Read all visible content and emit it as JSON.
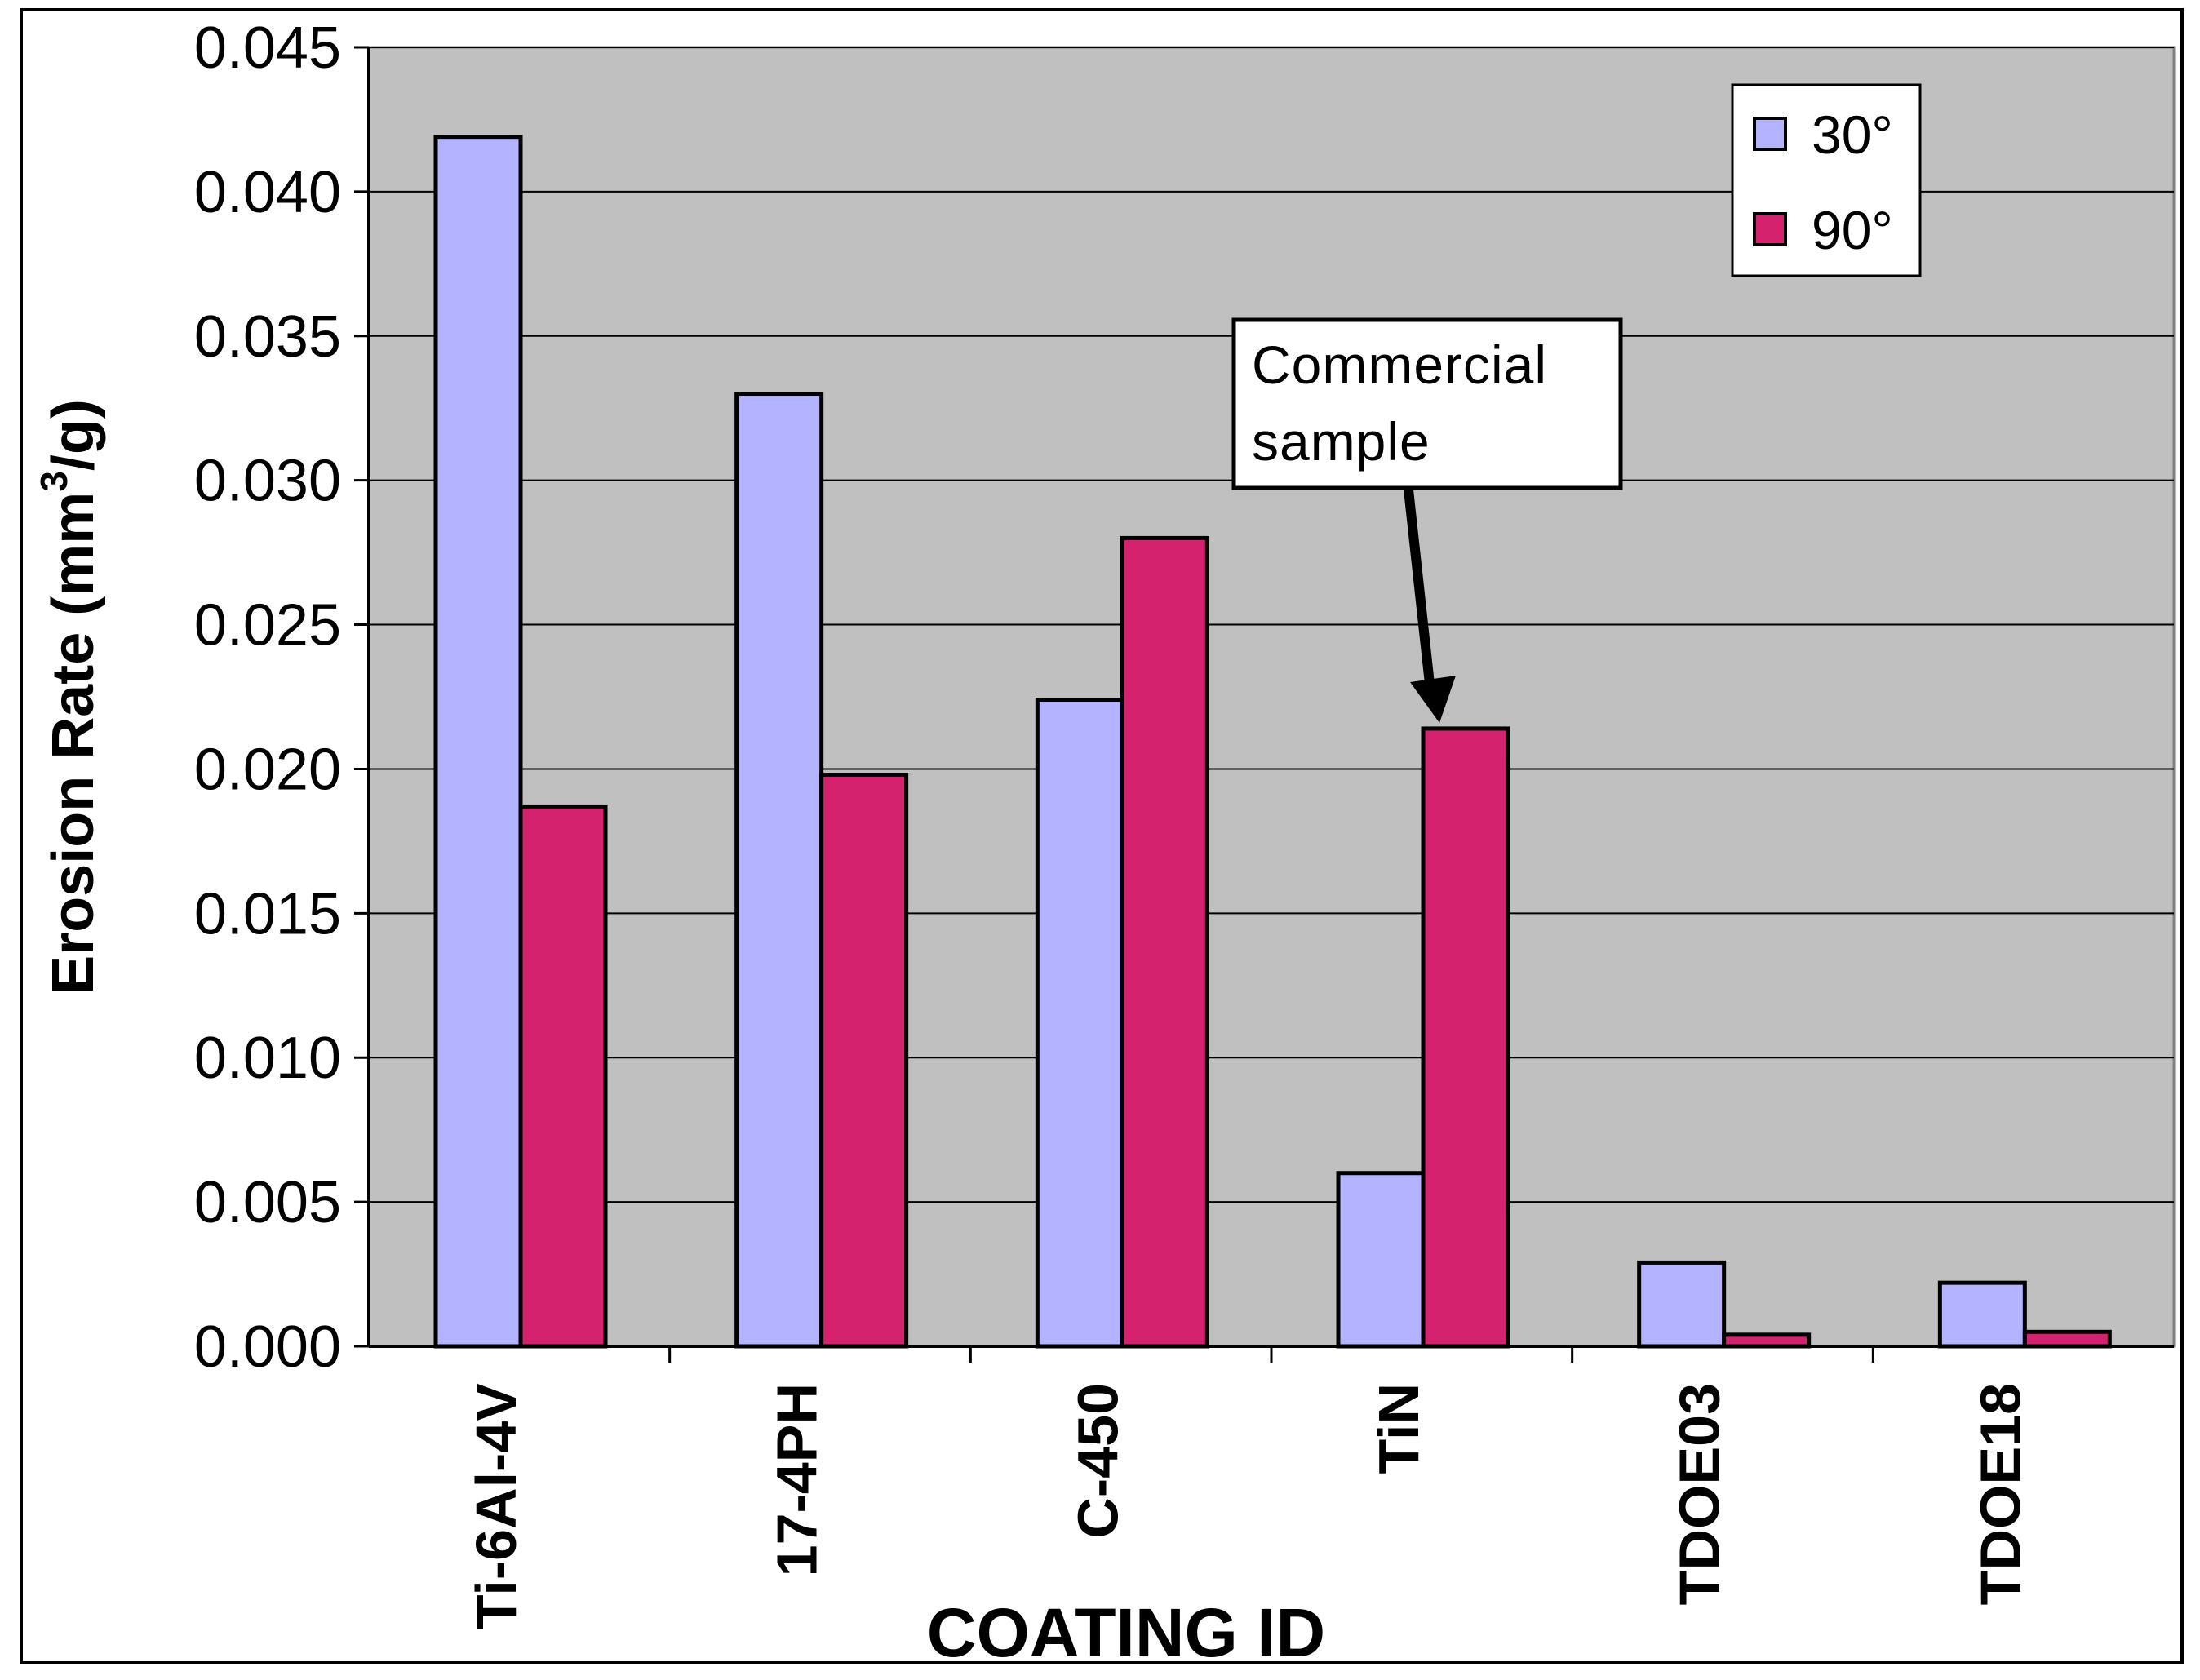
{
  "chart_data": {
    "type": "bar",
    "title": "",
    "xlabel": "COATING ID",
    "ylabel": "Erosion Rate (mm",
    "ylabel_superscript": "3",
    "ylabel_suffix": "/g)",
    "ylim": [
      0,
      0.045
    ],
    "yticks": [
      "0.000",
      "0.005",
      "0.010",
      "0.015",
      "0.020",
      "0.025",
      "0.030",
      "0.035",
      "0.040",
      "0.045"
    ],
    "categories": [
      "Ti-6Al-4V",
      "17-4PH",
      "C-450",
      "TiN",
      "TDOE03",
      "TDOE18"
    ],
    "series": [
      {
        "name": "30°",
        "color": "#b3b3ff",
        "values": [
          0.0419,
          0.033,
          0.0224,
          0.006,
          0.0029,
          0.0022
        ]
      },
      {
        "name": "90°",
        "color": "#d4226e",
        "values": [
          0.0187,
          0.0198,
          0.028,
          0.0214,
          0.0004,
          0.0005
        ]
      }
    ],
    "grid": true,
    "legend_position": "top-right",
    "plot_background": "#c0c0c0",
    "annotation": {
      "lines": [
        "Commercial",
        "sample"
      ],
      "target_category": "TiN",
      "target_series": "90°"
    }
  }
}
